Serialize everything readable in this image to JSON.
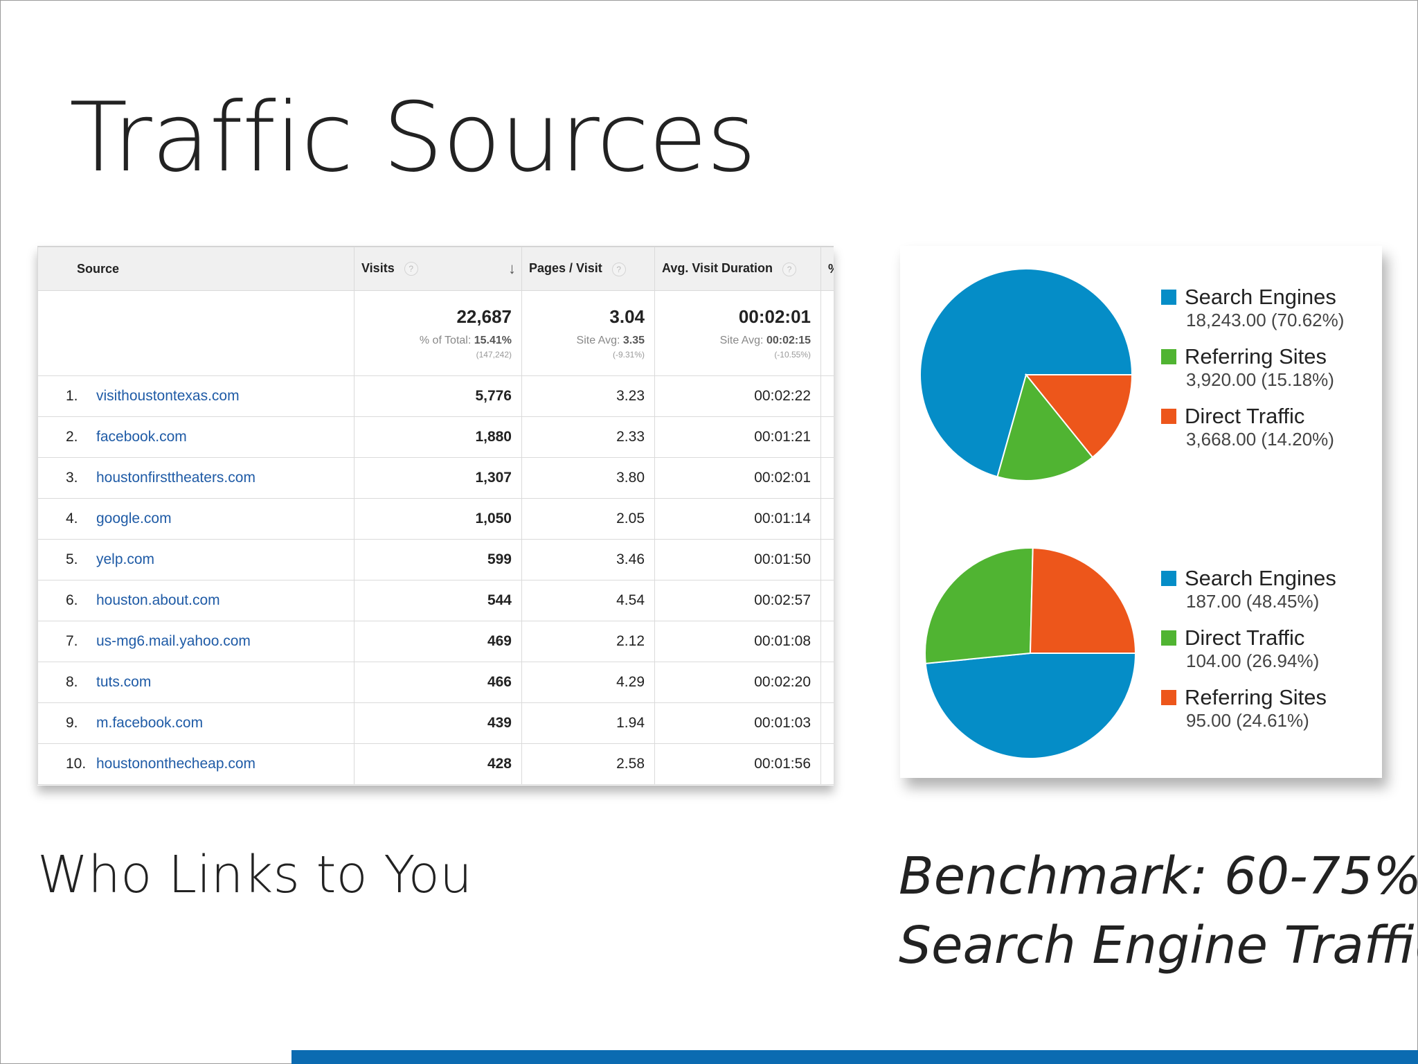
{
  "slide": {
    "title": "Traffic Sources",
    "caption_left": "Who Links to You",
    "caption_right_line1": "Benchmark: 60-75%",
    "caption_right_line2": "Search Engine Traffic",
    "accent_color": "#0b6bb1"
  },
  "table": {
    "headers": {
      "source": "Source",
      "visits": "Visits",
      "pages": "Pages / Visit",
      "duration": "Avg. Visit Duration",
      "extra": "%"
    },
    "totals": {
      "visits": "22,687",
      "visits_label": "% of Total: ",
      "visits_pct": "15.41%",
      "visits_small": "(147,242)",
      "pages": "3.04",
      "pages_label": "Site Avg: ",
      "pages_avg": "3.35",
      "pages_small": "(-9.31%)",
      "duration": "00:02:01",
      "duration_label": "Site Avg: ",
      "duration_avg": "00:02:15",
      "duration_small": "(-10.55%)"
    },
    "rows": [
      {
        "num": "1.",
        "source": "visithoustontexas.com",
        "visits": "5,776",
        "pages": "3.23",
        "duration": "00:02:22"
      },
      {
        "num": "2.",
        "source": "facebook.com",
        "visits": "1,880",
        "pages": "2.33",
        "duration": "00:01:21"
      },
      {
        "num": "3.",
        "source": "houstonfirsttheaters.com",
        "visits": "1,307",
        "pages": "3.80",
        "duration": "00:02:01"
      },
      {
        "num": "4.",
        "source": "google.com",
        "visits": "1,050",
        "pages": "2.05",
        "duration": "00:01:14"
      },
      {
        "num": "5.",
        "source": "yelp.com",
        "visits": "599",
        "pages": "3.46",
        "duration": "00:01:50"
      },
      {
        "num": "6.",
        "source": "houston.about.com",
        "visits": "544",
        "pages": "4.54",
        "duration": "00:02:57"
      },
      {
        "num": "7.",
        "source": "us-mg6.mail.yahoo.com",
        "visits": "469",
        "pages": "2.12",
        "duration": "00:01:08"
      },
      {
        "num": "8.",
        "source": "tuts.com",
        "visits": "466",
        "pages": "4.29",
        "duration": "00:02:20"
      },
      {
        "num": "9.",
        "source": "m.facebook.com",
        "visits": "439",
        "pages": "1.94",
        "duration": "00:01:03"
      },
      {
        "num": "10.",
        "source": "houstononthecheap.com",
        "visits": "428",
        "pages": "2.58",
        "duration": "00:01:56"
      }
    ]
  },
  "chart_data": [
    {
      "type": "pie",
      "start_angle_deg": 0,
      "direction": "counterclockwise",
      "slices": [
        {
          "label": "Search Engines",
          "value": 18243.0,
          "percent": 70.62,
          "value_text": "18,243.00 (70.62%)",
          "color": "#058dc7"
        },
        {
          "label": "Referring Sites",
          "value": 3920.0,
          "percent": 15.18,
          "value_text": "3,920.00 (15.18%)",
          "color": "#50b432"
        },
        {
          "label": "Direct Traffic",
          "value": 3668.0,
          "percent": 14.2,
          "value_text": "3,668.00 (14.20%)",
          "color": "#ed561b"
        }
      ]
    },
    {
      "type": "pie",
      "start_angle_deg": 0,
      "direction": "clockwise",
      "slices": [
        {
          "label": "Search Engines",
          "value": 187.0,
          "percent": 48.45,
          "value_text": "187.00 (48.45%)",
          "color": "#058dc7"
        },
        {
          "label": "Direct Traffic",
          "value": 104.0,
          "percent": 26.94,
          "value_text": "104.00 (26.94%)",
          "color": "#50b432"
        },
        {
          "label": "Referring Sites",
          "value": 95.0,
          "percent": 24.61,
          "value_text": "95.00 (24.61%)",
          "color": "#ed561b"
        }
      ]
    }
  ]
}
